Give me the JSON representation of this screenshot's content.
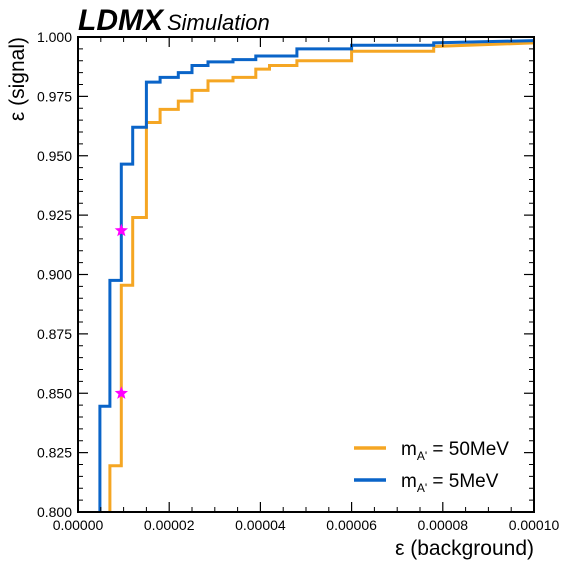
{
  "header": {
    "experiment": "LDMX",
    "tag": "Simulation"
  },
  "chart_data": {
    "type": "line",
    "xlabel": "ε (background)",
    "ylabel": "ε (signal)",
    "xlim": [
      0,
      0.0001
    ],
    "ylim": [
      0.8,
      1.0
    ],
    "x_ticks": [
      0,
      2e-05,
      4e-05,
      6e-05,
      8e-05,
      0.0001
    ],
    "x_tick_labels": [
      "0.00000",
      "0.00002",
      "0.00004",
      "0.00006",
      "0.00008",
      "0.00010"
    ],
    "y_ticks": [
      0.8,
      0.825,
      0.85,
      0.875,
      0.9,
      0.925,
      0.95,
      0.975,
      1.0
    ],
    "y_tick_labels": [
      "0.800",
      "0.825",
      "0.850",
      "0.875",
      "0.900",
      "0.925",
      "0.950",
      "0.975",
      "1.000"
    ],
    "grid": false,
    "legend_position": "bottom-right",
    "series": [
      {
        "name": "m_A' = 50MeV",
        "legend": {
          "base": "m",
          "sub": "A'",
          "rest": " = 50MeV"
        },
        "color": "#f5a623",
        "step": true,
        "x": [
          7e-06,
          7e-06,
          9.5e-06,
          9.5e-06,
          1.2e-05,
          1.2e-05,
          1.5e-05,
          1.5e-05,
          1.8e-05,
          1.8e-05,
          2.2e-05,
          2.2e-05,
          2.5e-05,
          2.5e-05,
          2.85e-05,
          2.85e-05,
          3.4e-05,
          3.4e-05,
          3.9e-05,
          3.9e-05,
          4.2e-05,
          4.2e-05,
          4.8e-05,
          4.8e-05,
          6e-05,
          6e-05,
          7.8e-05,
          7.8e-05,
          0.0001
        ],
        "y": [
          0.8,
          0.8195,
          0.8195,
          0.8955,
          0.8955,
          0.924,
          0.924,
          0.964,
          0.964,
          0.9695,
          0.9695,
          0.973,
          0.973,
          0.9775,
          0.9775,
          0.9815,
          0.9815,
          0.983,
          0.983,
          0.9865,
          0.9865,
          0.988,
          0.988,
          0.99,
          0.99,
          0.994,
          0.994,
          0.996,
          0.9975
        ]
      },
      {
        "name": "m_A' = 5MeV",
        "legend": {
          "base": "m",
          "sub": "A'",
          "rest": " = 5MeV"
        },
        "color": "#0a64c8",
        "step": true,
        "x": [
          4.8e-06,
          4.8e-06,
          7e-06,
          7e-06,
          9.5e-06,
          9.5e-06,
          1.2e-05,
          1.2e-05,
          1.5e-05,
          1.5e-05,
          1.8e-05,
          1.8e-05,
          2.2e-05,
          2.2e-05,
          2.5e-05,
          2.5e-05,
          2.85e-05,
          2.85e-05,
          3.4e-05,
          3.4e-05,
          3.9e-05,
          3.9e-05,
          4.8e-05,
          4.8e-05,
          6e-05,
          6e-05,
          7.8e-05,
          7.8e-05,
          0.0001
        ],
        "y": [
          0.8,
          0.8445,
          0.8445,
          0.8975,
          0.8975,
          0.9465,
          0.9465,
          0.962,
          0.962,
          0.981,
          0.981,
          0.983,
          0.983,
          0.985,
          0.985,
          0.988,
          0.988,
          0.9895,
          0.9895,
          0.9905,
          0.9905,
          0.992,
          0.992,
          0.995,
          0.995,
          0.9965,
          0.9965,
          0.9975,
          0.9985
        ]
      }
    ],
    "markers": [
      {
        "x": 9.5e-06,
        "y": 0.9185,
        "shape": "star",
        "color": "#ff00ff"
      },
      {
        "x": 9.5e-06,
        "y": 0.85,
        "shape": "star",
        "color": "#ff00ff"
      }
    ]
  }
}
